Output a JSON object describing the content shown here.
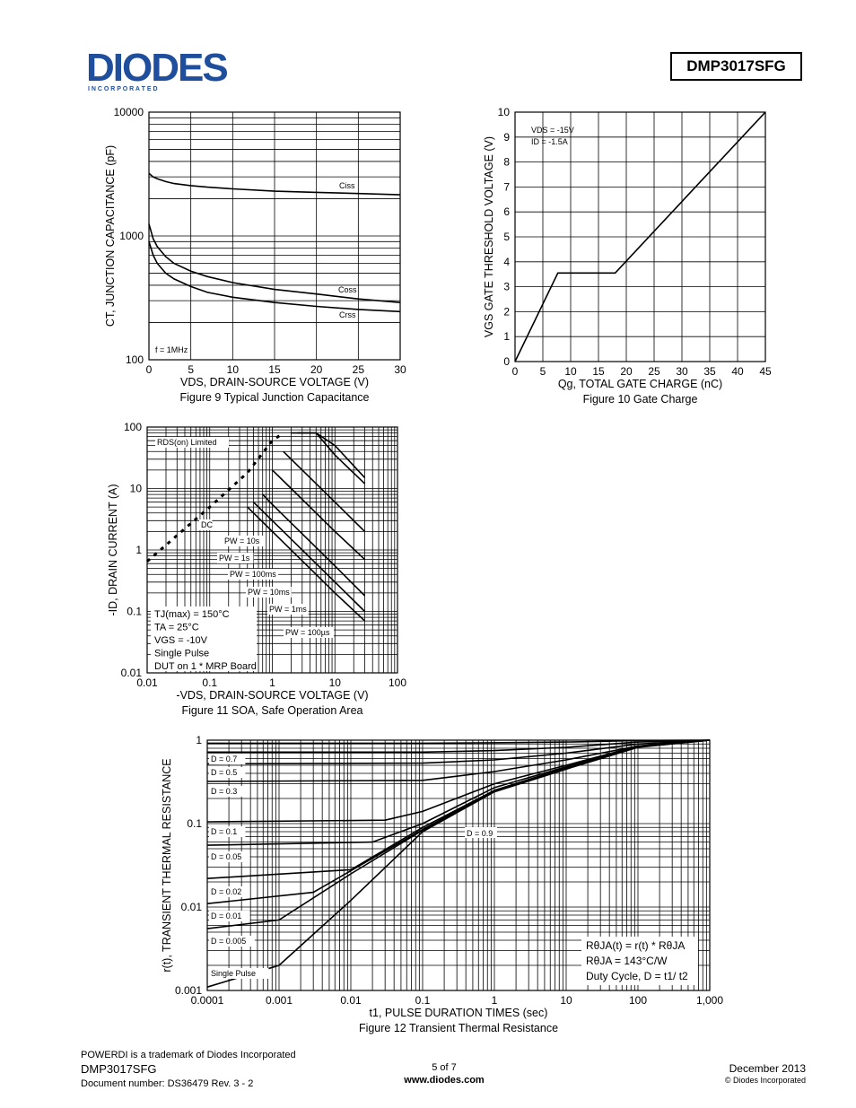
{
  "header": {
    "logo_text": "DIODES",
    "logo_sub": "I N C O R P O R A T E D",
    "part_number": "DMP3017SFG"
  },
  "footer": {
    "trademark": "POWERDI is a trademark of Diodes Incorporated",
    "part": "DMP3017SFG",
    "doc": "Document number: DS36479  Rev. 3 - 2",
    "page": "5 of 7",
    "url": "www.diodes.com",
    "date": "December 2013",
    "copyright": "© Diodes Incorporated"
  },
  "chart_data": [
    {
      "id": "fig9",
      "type": "line",
      "caption": "Figure 9 Typical Junction Capacitance",
      "xlabel": "VDS, DRAIN-SOURCE VOLTAGE (V)",
      "ylabel": "CT, JUNCTION CAPACITANCE (pF)",
      "xlim": [
        0,
        30
      ],
      "ylim": [
        100,
        10000
      ],
      "yscale": "log",
      "xticks": [
        "0",
        "5",
        "10",
        "15",
        "20",
        "25",
        "30"
      ],
      "yticks": [
        "100",
        "1000",
        "10000"
      ],
      "annotation": "f = 1MHz",
      "series": [
        {
          "name": "Ciss",
          "x": [
            0,
            0.5,
            1,
            2,
            3,
            5,
            7,
            10,
            15,
            20,
            25,
            30
          ],
          "y": [
            3200,
            3000,
            2900,
            2750,
            2650,
            2550,
            2480,
            2400,
            2300,
            2250,
            2200,
            2150
          ]
        },
        {
          "name": "Coss",
          "x": [
            0,
            0.5,
            1,
            2,
            3,
            5,
            7,
            10,
            15,
            20,
            25,
            30
          ],
          "y": [
            1250,
            950,
            820,
            680,
            600,
            520,
            470,
            420,
            370,
            340,
            310,
            290
          ]
        },
        {
          "name": "Crss",
          "x": [
            0,
            0.5,
            1,
            2,
            3,
            5,
            7,
            10,
            15,
            20,
            25,
            30
          ],
          "y": [
            900,
            700,
            600,
            500,
            450,
            390,
            350,
            320,
            290,
            270,
            255,
            245
          ]
        }
      ]
    },
    {
      "id": "fig10",
      "type": "line",
      "caption": "Figure 10 Gate Charge",
      "xlabel": "Qg, TOTAL GATE CHARGE (nC)",
      "ylabel": "VGS GATE THRESHOLD VOLTAGE (V)",
      "xlim": [
        0,
        45
      ],
      "ylim": [
        0,
        10
      ],
      "xticks": [
        "0",
        "5",
        "10",
        "15",
        "20",
        "25",
        "30",
        "35",
        "40",
        "45"
      ],
      "yticks": [
        "0",
        "1",
        "2",
        "3",
        "4",
        "5",
        "6",
        "7",
        "8",
        "9",
        "10"
      ],
      "annotation": [
        "VDS = -15V",
        "ID = -1.5A"
      ],
      "series": [
        {
          "name": "VGS",
          "x": [
            0,
            7.7,
            18,
            45
          ],
          "y": [
            0,
            3.55,
            3.55,
            10
          ]
        }
      ]
    },
    {
      "id": "fig11",
      "type": "line",
      "caption": "Figure 11  SOA, Safe Operation Area",
      "xlabel": "-VDS, DRAIN-SOURCE VOLTAGE (V)",
      "ylabel": "-ID, DRAIN CURRENT (A)",
      "xscale": "log",
      "yscale": "log",
      "xlim": [
        0.01,
        100
      ],
      "ylim": [
        0.01,
        100
      ],
      "xticks": [
        "0.01",
        "0.1",
        "1",
        "10",
        "100"
      ],
      "yticks": [
        "0.01",
        "0.1",
        "1",
        "10",
        "100"
      ],
      "conditions": [
        "TJ(max) = 150°C",
        "TA = 25°C",
        "VGS = -10V",
        "Single Pulse",
        "DUT on 1 * MRP Board"
      ],
      "labels": [
        "RDS(on) Limited",
        "DC",
        "PW = 10s",
        "PW = 1s",
        "PW = 100ms",
        "PW = 10ms",
        "PW = 1ms",
        "PW = 100µs"
      ],
      "series": [
        {
          "name": "RDS(on) Limited",
          "x": [
            0.01,
            0.1,
            0.4,
            1,
            1.5
          ],
          "y": [
            0.65,
            5,
            18,
            60,
            80
          ]
        },
        {
          "name": "DC",
          "x": [
            0.4,
            1,
            10,
            30
          ],
          "y": [
            5,
            2,
            0.2,
            0.07
          ]
        },
        {
          "name": "PW = 10s",
          "x": [
            0.5,
            1,
            10,
            30
          ],
          "y": [
            6,
            3,
            0.3,
            0.1
          ]
        },
        {
          "name": "PW = 1s",
          "x": [
            0.7,
            1,
            10,
            30
          ],
          "y": [
            8,
            5.5,
            0.55,
            0.18
          ]
        },
        {
          "name": "PW = 100ms",
          "x": [
            1,
            2,
            10,
            30
          ],
          "y": [
            20,
            10,
            2,
            0.7
          ]
        },
        {
          "name": "PW = 10ms",
          "x": [
            1.5,
            4,
            10,
            30
          ],
          "y": [
            40,
            15,
            6,
            2
          ]
        },
        {
          "name": "PW = 1ms",
          "x": [
            2,
            5,
            10,
            30
          ],
          "y": [
            80,
            80,
            35,
            12
          ]
        },
        {
          "name": "PW = 100µs",
          "x": [
            2.5,
            5,
            10,
            30
          ],
          "y": [
            80,
            80,
            50,
            15
          ]
        }
      ]
    },
    {
      "id": "fig12",
      "type": "line",
      "caption": "Figure 12  Transient Thermal Resistance",
      "xlabel": "t1, PULSE DURATION TIMES (sec)",
      "ylabel": "r(t), TRANSIENT THERMAL RESISTANCE",
      "xscale": "log",
      "yscale": "log",
      "xlim": [
        0.0001,
        1000
      ],
      "ylim": [
        0.001,
        1
      ],
      "xticks": [
        "0.0001",
        "0.001",
        "0.01",
        "0.1",
        "1",
        "10",
        "100",
        "1,000"
      ],
      "yticks": [
        "0.001",
        "0.01",
        "0.1",
        "1"
      ],
      "formula": [
        "RθJA(t) = r(t) * RθJA",
        "RθJA = 143°C/W",
        "Duty Cycle, D = t1/ t2"
      ],
      "series": [
        {
          "name": "D = 0.9",
          "x": [
            0.0001,
            0.1,
            1,
            10,
            100,
            1000
          ],
          "y": [
            0.92,
            0.92,
            0.93,
            0.95,
            0.99,
            1
          ]
        },
        {
          "name": "D = 0.7",
          "x": [
            0.0001,
            0.1,
            1,
            10,
            100,
            1000
          ],
          "y": [
            0.72,
            0.72,
            0.75,
            0.82,
            0.95,
            1
          ]
        },
        {
          "name": "D = 0.5",
          "x": [
            0.0001,
            0.1,
            1,
            10,
            100,
            1000
          ],
          "y": [
            0.52,
            0.53,
            0.58,
            0.7,
            0.9,
            1
          ]
        },
        {
          "name": "D = 0.3",
          "x": [
            0.0001,
            0.1,
            1,
            10,
            100,
            1000
          ],
          "y": [
            0.32,
            0.33,
            0.42,
            0.58,
            0.85,
            1
          ]
        },
        {
          "name": "D = 0.1",
          "x": [
            0.0001,
            0.03,
            0.1,
            1,
            10,
            100,
            1000
          ],
          "y": [
            0.105,
            0.11,
            0.14,
            0.3,
            0.5,
            0.85,
            1
          ]
        },
        {
          "name": "D = 0.05",
          "x": [
            0.0001,
            0.02,
            0.1,
            1,
            10,
            100,
            1000
          ],
          "y": [
            0.055,
            0.06,
            0.1,
            0.27,
            0.48,
            0.84,
            1
          ]
        },
        {
          "name": "D = 0.02",
          "x": [
            0.0001,
            0.01,
            0.1,
            1,
            10,
            100,
            1000
          ],
          "y": [
            0.022,
            0.028,
            0.09,
            0.25,
            0.47,
            0.83,
            1
          ]
        },
        {
          "name": "D = 0.01",
          "x": [
            0.0001,
            0.003,
            0.1,
            1,
            10,
            100,
            1000
          ],
          "y": [
            0.011,
            0.015,
            0.085,
            0.25,
            0.46,
            0.83,
            1
          ]
        },
        {
          "name": "D = 0.005",
          "x": [
            0.0001,
            0.001,
            0.01,
            0.1,
            1,
            10,
            100,
            1000
          ],
          "y": [
            0.0055,
            0.007,
            0.025,
            0.083,
            0.25,
            0.46,
            0.83,
            1
          ]
        },
        {
          "name": "Single Pulse",
          "x": [
            0.0001,
            0.001,
            0.01,
            0.1,
            1,
            10,
            100,
            1000
          ],
          "y": [
            0.0011,
            0.002,
            0.012,
            0.08,
            0.24,
            0.45,
            0.82,
            1
          ]
        }
      ]
    }
  ]
}
